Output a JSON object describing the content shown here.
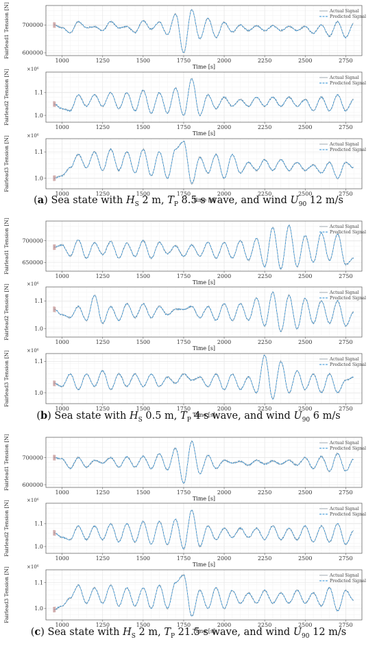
{
  "figure": {
    "legend": {
      "actual": "Actual Signal",
      "predicted": "Predicted Signal"
    },
    "xlabel": "Time [s]",
    "colors": {
      "actual": "#9aa5ad",
      "predicted": "#2b8fd6",
      "grid": "#e6e6e6",
      "axis": "#555555"
    },
    "groups": [
      {
        "caption": {
          "letter": "a",
          "sea": "Sea state with ",
          "hs": "H",
          "hs_sub": "S",
          "hs_val": " 2 m, ",
          "tp": "T",
          "tp_sub": "P",
          "tp_val": " 8.5 s wave, and wind ",
          "u": "U",
          "u_sub": "90",
          "u_val": " 12 m/s"
        }
      },
      {
        "caption": {
          "letter": "b",
          "sea": "Sea state with ",
          "hs": "H",
          "hs_sub": "S",
          "hs_val": " 0.5 m, ",
          "tp": "T",
          "tp_sub": "P",
          "tp_val": " 4 s wave, and wind ",
          "u": "U",
          "u_sub": "90",
          "u_val": " 6 m/s"
        }
      },
      {
        "caption": {
          "letter": "c",
          "sea": "Sea state with ",
          "hs": "H",
          "hs_sub": "S",
          "hs_val": " 2 m, ",
          "tp": "T",
          "tp_sub": "P",
          "tp_val": " 21.5 s wave, and wind ",
          "u": "U",
          "u_sub": "90",
          "u_val": " 12 m/s"
        }
      }
    ]
  },
  "chart_data": [
    {
      "type": "line",
      "group": "a",
      "ylabel": "Fairlead1 Tension [N]",
      "xlabel": "Time [s]",
      "xlim": [
        900,
        2850
      ],
      "xticks": [
        1000,
        1250,
        1500,
        1750,
        2000,
        2250,
        2500,
        2750
      ],
      "ylim": [
        590000,
        770000
      ],
      "yticks": [
        600000,
        700000
      ],
      "ytick_labels": [
        "600000",
        "700000"
      ],
      "exponent": "",
      "series": [
        {
          "name": "Actual Signal"
        },
        {
          "name": "Predicted Signal"
        }
      ],
      "x": [
        950,
        1000,
        1050,
        1100,
        1150,
        1200,
        1250,
        1300,
        1350,
        1400,
        1450,
        1500,
        1550,
        1600,
        1650,
        1700,
        1750,
        1800,
        1850,
        1900,
        1950,
        2000,
        2050,
        2100,
        2150,
        2200,
        2250,
        2300,
        2350,
        2400,
        2450,
        2500,
        2550,
        2600,
        2650,
        2700,
        2750,
        2800
      ],
      "y": [
        700000,
        690000,
        672000,
        712000,
        690000,
        694000,
        680000,
        712000,
        690000,
        694000,
        673000,
        716000,
        685000,
        710000,
        665000,
        740000,
        600000,
        755000,
        650000,
        724000,
        655000,
        710000,
        675000,
        700000,
        680000,
        697000,
        680000,
        697000,
        680000,
        695000,
        680000,
        695000,
        670000,
        700000,
        660000,
        712000,
        655000,
        705000
      ]
    },
    {
      "type": "line",
      "group": "a",
      "ylabel": "Fairlead2 Tension [N]",
      "xlabel": "Time [s]",
      "xlim": [
        900,
        2850
      ],
      "xticks": [
        1000,
        1250,
        1500,
        1750,
        2000,
        2250,
        2500,
        2750
      ],
      "ylim": [
        970000,
        1190000
      ],
      "yticks": [
        1000000,
        1100000
      ],
      "ytick_labels": [
        "1.0",
        "1.1"
      ],
      "exponent": "×10⁶",
      "series": [
        {
          "name": "Actual Signal"
        },
        {
          "name": "Predicted Signal"
        }
      ],
      "x": [
        950,
        1000,
        1050,
        1100,
        1150,
        1200,
        1250,
        1300,
        1350,
        1400,
        1450,
        1500,
        1550,
        1600,
        1650,
        1700,
        1750,
        1800,
        1850,
        1900,
        1950,
        2000,
        2050,
        2100,
        2150,
        2200,
        2250,
        2300,
        2350,
        2400,
        2450,
        2500,
        2550,
        2600,
        2650,
        2700,
        2750,
        2800
      ],
      "y": [
        1050000,
        1030000,
        1020000,
        1090000,
        1040000,
        1090000,
        1040000,
        1100000,
        1030000,
        1100000,
        1020000,
        1110000,
        1010000,
        1100000,
        1010000,
        1120000,
        1000000,
        1160000,
        1000000,
        1090000,
        1030000,
        1080000,
        1040000,
        1070000,
        1040000,
        1080000,
        1040000,
        1080000,
        1040000,
        1080000,
        1040000,
        1070000,
        1020000,
        1080000,
        1020000,
        1090000,
        1020000,
        1070000
      ]
    },
    {
      "type": "line",
      "group": "a",
      "ylabel": "Fairlead3 Tension [N]",
      "xlabel": "Time [s]",
      "xlim": [
        900,
        2850
      ],
      "xticks": [
        1000,
        1250,
        1500,
        1750,
        2000,
        2250,
        2500,
        2750
      ],
      "ylim": [
        960000,
        1150000
      ],
      "yticks": [
        1000000,
        1100000
      ],
      "ytick_labels": [
        "1.0",
        "1.1"
      ],
      "exponent": "×10⁶",
      "series": [
        {
          "name": "Actual Signal"
        },
        {
          "name": "Predicted Signal"
        }
      ],
      "x": [
        950,
        1000,
        1050,
        1100,
        1150,
        1200,
        1250,
        1300,
        1350,
        1400,
        1450,
        1500,
        1550,
        1600,
        1650,
        1700,
        1750,
        1800,
        1850,
        1900,
        1950,
        2000,
        2050,
        2100,
        2150,
        2200,
        2250,
        2300,
        2350,
        2400,
        2450,
        2500,
        2550,
        2600,
        2650,
        2700,
        2750,
        2800
      ],
      "y": [
        1000000,
        1010000,
        1040000,
        1090000,
        1040000,
        1100000,
        1030000,
        1110000,
        1030000,
        1100000,
        1020000,
        1110000,
        1010000,
        1100000,
        1000000,
        1110000,
        1140000,
        980000,
        1080000,
        1020000,
        1090000,
        1000000,
        1090000,
        1020000,
        1060000,
        1030000,
        1070000,
        1030000,
        1070000,
        1030000,
        1060000,
        1030000,
        1050000,
        1020000,
        1060000,
        1000000,
        1060000,
        1040000
      ]
    },
    {
      "type": "line",
      "group": "b",
      "ylabel": "Fairlead1 Tension [N]",
      "xlabel": "Time [s]",
      "xlim": [
        900,
        2850
      ],
      "xticks": [
        1000,
        1250,
        1500,
        1750,
        2000,
        2250,
        2500,
        2750
      ],
      "ylim": [
        630000,
        745000
      ],
      "yticks": [
        650000,
        700000
      ],
      "ytick_labels": [
        "650000",
        "700000"
      ],
      "exponent": "",
      "series": [
        {
          "name": "Actual Signal"
        },
        {
          "name": "Predicted Signal"
        }
      ],
      "x": [
        950,
        1000,
        1050,
        1100,
        1150,
        1200,
        1250,
        1300,
        1350,
        1400,
        1450,
        1500,
        1550,
        1600,
        1650,
        1700,
        1750,
        1800,
        1850,
        1900,
        1950,
        2000,
        2050,
        2100,
        2150,
        2200,
        2250,
        2300,
        2350,
        2400,
        2450,
        2500,
        2550,
        2600,
        2650,
        2700,
        2750,
        2800
      ],
      "y": [
        685000,
        690000,
        665000,
        702000,
        660000,
        696000,
        668000,
        698000,
        660000,
        694000,
        664000,
        700000,
        660000,
        696000,
        670000,
        688000,
        664000,
        690000,
        665000,
        696000,
        660000,
        696000,
        660000,
        700000,
        655000,
        705000,
        640000,
        730000,
        635000,
        735000,
        640000,
        712000,
        650000,
        718000,
        655000,
        715000,
        645000,
        660000
      ]
    },
    {
      "type": "line",
      "group": "b",
      "ylabel": "Fairlead2 Tension [N]",
      "xlabel": "Time [s]",
      "xlim": [
        900,
        2850
      ],
      "xticks": [
        1000,
        1250,
        1500,
        1750,
        2000,
        2250,
        2500,
        2750
      ],
      "ylim": [
        970000,
        1150000
      ],
      "yticks": [
        1000000,
        1100000
      ],
      "ytick_labels": [
        "1.0",
        "1.1"
      ],
      "exponent": "×10⁶",
      "series": [
        {
          "name": "Actual Signal"
        },
        {
          "name": "Predicted Signal"
        }
      ],
      "x": [
        950,
        1000,
        1050,
        1100,
        1150,
        1200,
        1250,
        1300,
        1350,
        1400,
        1450,
        1500,
        1550,
        1600,
        1650,
        1700,
        1750,
        1800,
        1850,
        1900,
        1950,
        2000,
        2050,
        2100,
        2150,
        2200,
        2250,
        2300,
        2350,
        2400,
        2450,
        2500,
        2550,
        2600,
        2650,
        2700,
        2750,
        2800
      ],
      "y": [
        1070000,
        1050000,
        1040000,
        1080000,
        1030000,
        1120000,
        1020000,
        1080000,
        1030000,
        1090000,
        1040000,
        1090000,
        1040000,
        1080000,
        1050000,
        1070000,
        1070000,
        1080000,
        1040000,
        1080000,
        1030000,
        1090000,
        1030000,
        1090000,
        1030000,
        1110000,
        1010000,
        1130000,
        990000,
        1120000,
        1000000,
        1110000,
        1020000,
        1100000,
        1020000,
        1100000,
        1010000,
        1060000
      ]
    },
    {
      "type": "line",
      "group": "b",
      "ylabel": "Fairlead3 Tension [N]",
      "xlabel": "Time [s]",
      "xlim": [
        900,
        2850
      ],
      "xticks": [
        1000,
        1250,
        1500,
        1750,
        2000,
        2250,
        2500,
        2750
      ],
      "ylim": [
        965000,
        1125000
      ],
      "yticks": [
        1000000,
        1100000
      ],
      "ytick_labels": [
        "1.0",
        "1.1"
      ],
      "exponent": "×10⁶",
      "series": [
        {
          "name": "Actual Signal"
        },
        {
          "name": "Predicted Signal"
        }
      ],
      "x": [
        950,
        1000,
        1050,
        1100,
        1150,
        1200,
        1250,
        1300,
        1350,
        1400,
        1450,
        1500,
        1550,
        1600,
        1650,
        1700,
        1750,
        1800,
        1850,
        1900,
        1950,
        2000,
        2050,
        2100,
        2150,
        2200,
        2250,
        2300,
        2350,
        2400,
        2450,
        2500,
        2550,
        2600,
        2650,
        2700,
        2750,
        2800
      ],
      "y": [
        1030000,
        1020000,
        1060000,
        1010000,
        1060000,
        1020000,
        1070000,
        1010000,
        1060000,
        1020000,
        1060000,
        1020000,
        1060000,
        1020000,
        1050000,
        1030000,
        1060000,
        1040000,
        1050000,
        1020000,
        1060000,
        1010000,
        1060000,
        1010000,
        1050000,
        1000000,
        1120000,
        980000,
        1100000,
        1000000,
        1070000,
        1010000,
        1060000,
        1000000,
        1060000,
        1000000,
        1040000,
        1050000
      ]
    },
    {
      "type": "line",
      "group": "c",
      "ylabel": "Fairlead1 Tension [N]",
      "xlabel": "Time [s]",
      "xlim": [
        900,
        2850
      ],
      "xticks": [
        1000,
        1250,
        1500,
        1750,
        2000,
        2250,
        2500,
        2750
      ],
      "ylim": [
        590000,
        775000
      ],
      "yticks": [
        600000,
        700000
      ],
      "ytick_labels": [
        "600000",
        "700000"
      ],
      "exponent": "",
      "series": [
        {
          "name": "Actual Signal"
        },
        {
          "name": "Predicted Signal"
        }
      ],
      "x": [
        950,
        1000,
        1050,
        1100,
        1150,
        1200,
        1250,
        1300,
        1350,
        1400,
        1450,
        1500,
        1550,
        1600,
        1650,
        1700,
        1750,
        1800,
        1850,
        1900,
        1950,
        2000,
        2050,
        2100,
        2150,
        2200,
        2250,
        2300,
        2350,
        2400,
        2450,
        2500,
        2550,
        2600,
        2650,
        2700,
        2750,
        2800
      ],
      "y": [
        700000,
        695000,
        660000,
        700000,
        665000,
        690000,
        680000,
        700000,
        665000,
        702000,
        665000,
        705000,
        660000,
        715000,
        655000,
        735000,
        605000,
        760000,
        640000,
        708000,
        660000,
        690000,
        680000,
        686000,
        672000,
        690000,
        676000,
        688000,
        676000,
        690000,
        672000,
        700000,
        660000,
        705000,
        650000,
        715000,
        650000,
        695000
      ]
    },
    {
      "type": "line",
      "group": "c",
      "ylabel": "Fairlead2 Tension [N]",
      "xlabel": "Time [s]",
      "xlim": [
        900,
        2850
      ],
      "xticks": [
        1000,
        1250,
        1500,
        1750,
        2000,
        2250,
        2500,
        2750
      ],
      "ylim": [
        970000,
        1190000
      ],
      "yticks": [
        1000000,
        1100000
      ],
      "ytick_labels": [
        "1.0",
        "1.1"
      ],
      "exponent": "×10⁶",
      "series": [
        {
          "name": "Actual Signal"
        },
        {
          "name": "Predicted Signal"
        }
      ],
      "x": [
        950,
        1000,
        1050,
        1100,
        1150,
        1200,
        1250,
        1300,
        1350,
        1400,
        1450,
        1500,
        1550,
        1600,
        1650,
        1700,
        1750,
        1800,
        1850,
        1900,
        1950,
        2000,
        2050,
        2100,
        2150,
        2200,
        2250,
        2300,
        2350,
        2400,
        2450,
        2500,
        2550,
        2600,
        2650,
        2700,
        2750,
        2800
      ],
      "y": [
        1060000,
        1040000,
        1030000,
        1090000,
        1030000,
        1090000,
        1030000,
        1100000,
        1020000,
        1100000,
        1020000,
        1110000,
        1010000,
        1110000,
        1010000,
        1120000,
        990000,
        1160000,
        1000000,
        1090000,
        1030000,
        1080000,
        1040000,
        1080000,
        1040000,
        1080000,
        1030000,
        1090000,
        1030000,
        1080000,
        1030000,
        1090000,
        1020000,
        1090000,
        1020000,
        1100000,
        1010000,
        1070000
      ]
    },
    {
      "type": "line",
      "group": "c",
      "ylabel": "Fairlead3 Tension [N]",
      "xlabel": "Time [s]",
      "xlim": [
        900,
        2850
      ],
      "xticks": [
        1000,
        1250,
        1500,
        1750,
        2000,
        2250,
        2500,
        2750
      ],
      "ylim": [
        955000,
        1150000
      ],
      "yticks": [
        1000000,
        1100000
      ],
      "ytick_labels": [
        "1.0",
        "1.1"
      ],
      "exponent": "×10⁶",
      "series": [
        {
          "name": "Actual Signal"
        },
        {
          "name": "Predicted Signal"
        }
      ],
      "x": [
        950,
        1000,
        1050,
        1100,
        1150,
        1200,
        1250,
        1300,
        1350,
        1400,
        1450,
        1500,
        1550,
        1600,
        1650,
        1700,
        1750,
        1800,
        1850,
        1900,
        1950,
        2000,
        2050,
        2100,
        2150,
        2200,
        2250,
        2300,
        2350,
        2400,
        2450,
        2500,
        2550,
        2600,
        2650,
        2700,
        2750,
        2800
      ],
      "y": [
        995000,
        1010000,
        1040000,
        1090000,
        1020000,
        1080000,
        1020000,
        1090000,
        1010000,
        1080000,
        1010000,
        1080000,
        1000000,
        1090000,
        1000000,
        1100000,
        1130000,
        970000,
        1070000,
        1000000,
        1080000,
        1000000,
        1070000,
        1020000,
        1060000,
        1020000,
        1070000,
        1020000,
        1060000,
        1020000,
        1070000,
        1020000,
        1060000,
        1010000,
        1080000,
        990000,
        1070000,
        1030000
      ]
    }
  ]
}
